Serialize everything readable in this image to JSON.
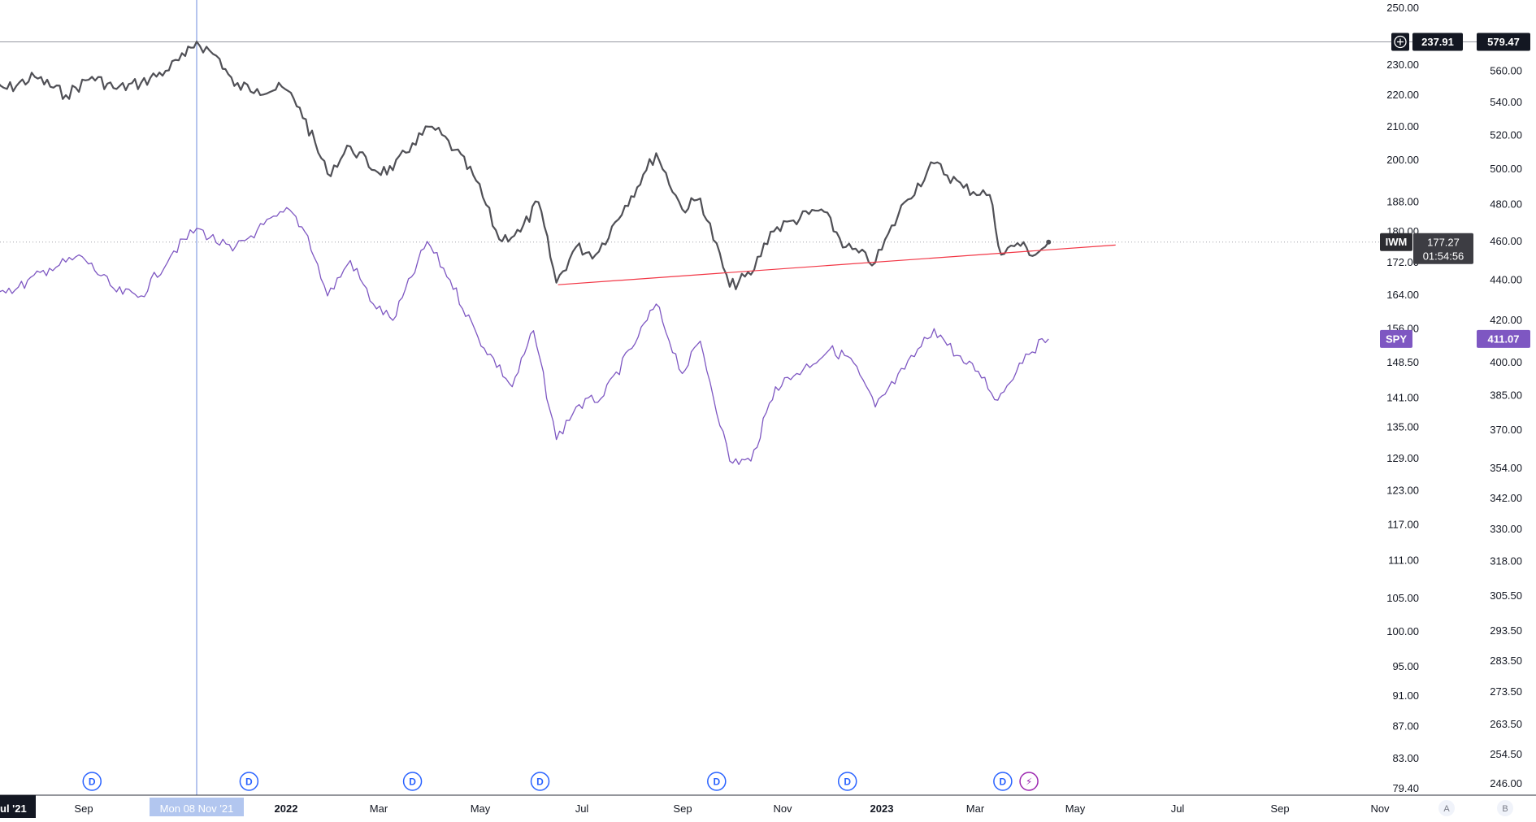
{
  "chart_data": {
    "type": "line",
    "title": "",
    "xlabel": "",
    "ylabel": "",
    "x_ticks": [
      "ul '21",
      "Sep",
      "Nov",
      "2022",
      "Mar",
      "May",
      "Jul",
      "Sep",
      "Nov",
      "2023",
      "Mar",
      "May",
      "Jul",
      "Sep",
      "Nov"
    ],
    "x_ticks_bold": [
      "2022",
      "2023"
    ],
    "x_tick_label_partial": "ul '21",
    "crosshair_label": "Mon 08 Nov '21",
    "x_range": [
      "2021-07-01",
      "2023-12-20"
    ],
    "y_left_ticks": [
      "250.00",
      "230.00",
      "220.00",
      "210.00",
      "200.00",
      "188.00",
      "180.00",
      "172.00",
      "164.00",
      "156.00",
      "148.50",
      "141.00",
      "135.00",
      "129.00",
      "123.00",
      "117.00",
      "111.00",
      "105.00",
      "100.00",
      "95.00",
      "91.00",
      "87.00",
      "83.00",
      "79.40"
    ],
    "y_right_ticks": [
      "560.00",
      "540.00",
      "520.00",
      "500.00",
      "480.00",
      "460.00",
      "440.00",
      "420.00",
      "400.00",
      "385.00",
      "370.00",
      "354.00",
      "342.00",
      "330.00",
      "318.00",
      "305.50",
      "293.50",
      "283.50",
      "273.50",
      "263.50",
      "254.50",
      "246.00"
    ],
    "y_left_scale": "log",
    "y_right_scale": "log",
    "y_left_range": [
      79.4,
      250
    ],
    "y_right_range": [
      246,
      579.47
    ],
    "grid": false,
    "crosshair": {
      "left_value": "237.91",
      "right_value": "579.47",
      "date": "2021-11-08"
    },
    "series": [
      {
        "name": "IWM",
        "axis": "left",
        "color": "#505056",
        "last_value": "177.27",
        "countdown": "01:54:56",
        "points": [
          [
            "2021-07-01",
            225
          ],
          [
            "2021-07-15",
            222
          ],
          [
            "2021-08-01",
            226
          ],
          [
            "2021-08-20",
            220
          ],
          [
            "2021-09-05",
            226
          ],
          [
            "2021-09-20",
            222
          ],
          [
            "2021-10-05",
            224
          ],
          [
            "2021-10-20",
            228
          ],
          [
            "2021-11-01",
            233
          ],
          [
            "2021-11-08",
            238
          ],
          [
            "2021-11-22",
            232
          ],
          [
            "2021-12-01",
            223
          ],
          [
            "2021-12-15",
            222
          ],
          [
            "2022-01-01",
            222
          ],
          [
            "2022-01-10",
            216
          ],
          [
            "2022-01-27",
            196
          ],
          [
            "2022-02-10",
            204
          ],
          [
            "2022-02-25",
            197
          ],
          [
            "2022-03-08",
            197
          ],
          [
            "2022-03-20",
            205
          ],
          [
            "2022-04-01",
            210
          ],
          [
            "2022-04-15",
            203
          ],
          [
            "2022-04-28",
            194
          ],
          [
            "2022-05-12",
            178
          ],
          [
            "2022-05-25",
            180
          ],
          [
            "2022-06-05",
            188
          ],
          [
            "2022-06-16",
            167
          ],
          [
            "2022-06-28",
            176
          ],
          [
            "2022-07-10",
            174
          ],
          [
            "2022-07-28",
            187
          ],
          [
            "2022-08-10",
            197
          ],
          [
            "2022-08-16",
            202
          ],
          [
            "2022-09-01",
            186
          ],
          [
            "2022-09-12",
            189
          ],
          [
            "2022-09-30",
            166
          ],
          [
            "2022-10-13",
            169
          ],
          [
            "2022-10-25",
            180
          ],
          [
            "2022-11-08",
            183
          ],
          [
            "2022-11-25",
            186
          ],
          [
            "2022-12-10",
            176
          ],
          [
            "2022-12-28",
            172
          ],
          [
            "2023-01-15",
            188
          ],
          [
            "2023-02-02",
            199
          ],
          [
            "2023-02-20",
            192
          ],
          [
            "2023-03-08",
            190
          ],
          [
            "2023-03-15",
            174
          ],
          [
            "2023-03-25",
            177
          ],
          [
            "2023-04-05",
            174
          ],
          [
            "2023-04-13",
            177.27
          ]
        ]
      },
      {
        "name": "SPY",
        "axis": "right",
        "color": "#7e57c2",
        "last_value": "411.07",
        "points": [
          [
            "2021-07-01",
            438
          ],
          [
            "2021-07-20",
            435
          ],
          [
            "2021-08-10",
            446
          ],
          [
            "2021-08-30",
            452
          ],
          [
            "2021-09-20",
            434
          ],
          [
            "2021-10-05",
            432
          ],
          [
            "2021-10-25",
            455
          ],
          [
            "2021-11-08",
            467
          ],
          [
            "2021-11-30",
            455
          ],
          [
            "2021-12-15",
            466
          ],
          [
            "2022-01-04",
            477
          ],
          [
            "2022-01-15",
            463
          ],
          [
            "2022-01-27",
            432
          ],
          [
            "2022-02-10",
            450
          ],
          [
            "2022-02-24",
            428
          ],
          [
            "2022-03-08",
            420
          ],
          [
            "2022-03-29",
            460
          ],
          [
            "2022-04-12",
            440
          ],
          [
            "2022-04-29",
            412
          ],
          [
            "2022-05-20",
            389
          ],
          [
            "2022-06-02",
            415
          ],
          [
            "2022-06-16",
            366
          ],
          [
            "2022-06-28",
            380
          ],
          [
            "2022-07-15",
            385
          ],
          [
            "2022-08-05",
            412
          ],
          [
            "2022-08-16",
            428
          ],
          [
            "2022-09-01",
            395
          ],
          [
            "2022-09-12",
            410
          ],
          [
            "2022-09-30",
            357
          ],
          [
            "2022-10-13",
            357
          ],
          [
            "2022-10-28",
            389
          ],
          [
            "2022-11-10",
            395
          ],
          [
            "2022-11-30",
            406
          ],
          [
            "2022-12-13",
            402
          ],
          [
            "2022-12-28",
            380
          ],
          [
            "2023-01-15",
            397
          ],
          [
            "2023-02-02",
            416
          ],
          [
            "2023-02-20",
            400
          ],
          [
            "2023-03-01",
            396
          ],
          [
            "2023-03-13",
            383
          ],
          [
            "2023-03-30",
            404
          ],
          [
            "2023-04-13",
            411.07
          ]
        ]
      }
    ],
    "annotations": {
      "trendline": {
        "color": "#f23645",
        "start": [
          "2022-06-17",
          166.5
        ],
        "end": [
          "2023-05-24",
          176.5
        ],
        "axis": "left"
      },
      "events": [
        {
          "date": "2021-09-05",
          "label": "D"
        },
        {
          "date": "2021-12-10",
          "label": "D"
        },
        {
          "date": "2022-03-20",
          "label": "D"
        },
        {
          "date": "2022-06-06",
          "label": "D"
        },
        {
          "date": "2022-09-22",
          "label": "D"
        },
        {
          "date": "2022-12-11",
          "label": "D"
        },
        {
          "date": "2023-03-16",
          "label": "D"
        },
        {
          "date": "2023-04-01",
          "label": "⚡"
        }
      ]
    },
    "scale_buttons": [
      "A",
      "B"
    ],
    "colors": {
      "crosshair_label_bg": "#131722",
      "crosshair_date_bg": "#b2c6ef",
      "iwm_tag_bg": "#2b2b30",
      "spy_tag_bg": "#7e57c2",
      "event_icon": "#2962ff",
      "earnings_icon": "#9c27b0"
    }
  }
}
